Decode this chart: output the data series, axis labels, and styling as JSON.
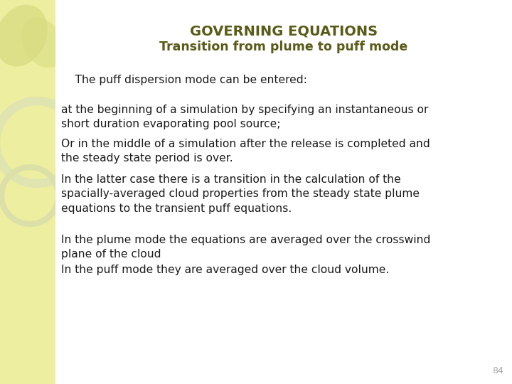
{
  "title_line1": "GOVERNING EQUATIONS",
  "title_line2": "Transition from plume to puff mode",
  "title_color": "#5a5a1a",
  "background_color": "#ffffff",
  "left_panel_color": "#eeeea0",
  "page_number": "84",
  "page_number_color": "#aaaaaa",
  "body_text_color": "#1a1a1a",
  "paragraphs": [
    "    The puff dispersion mode can be entered:",
    "at the beginning of a simulation by specifying an instantaneous or\nshort duration evaporating pool source;",
    "Or in the middle of a simulation after the release is completed and\nthe steady state period is over.",
    "In the latter case there is a transition in the calculation of the\nspacially-averaged cloud properties from the steady state plume\nequations to the transient puff equations.",
    "In the plume mode the equations are averaged over the crosswind\nplane of the cloud",
    "In the puff mode they are averaged over the cloud volume."
  ]
}
